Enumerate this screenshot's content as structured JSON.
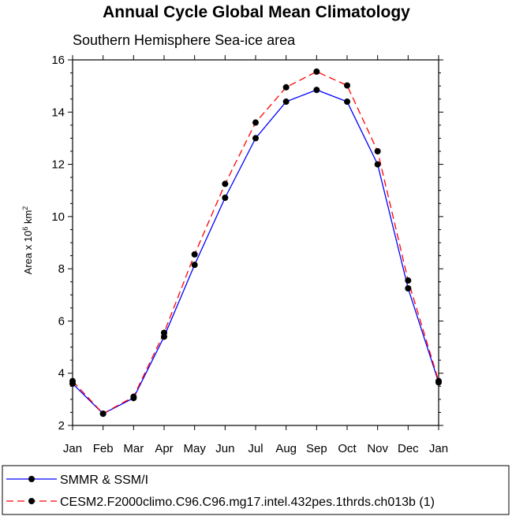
{
  "chart_data": {
    "type": "line",
    "title": "Annual Cycle Global Mean Climatology",
    "subtitle": "Southern Hemisphere Sea-ice area",
    "ylabel": {
      "prefix": "Area x 10",
      "exp1": "6",
      "mid": " km",
      "exp2": "2"
    },
    "xlabel": "",
    "categories": [
      "Jan",
      "Feb",
      "Mar",
      "Apr",
      "May",
      "Jun",
      "Jul",
      "Aug",
      "Sep",
      "Oct",
      "Nov",
      "Dec",
      "Jan"
    ],
    "ylim": [
      2,
      16
    ],
    "yticks": [
      2,
      4,
      6,
      8,
      10,
      12,
      14,
      16
    ],
    "grid": false,
    "legend_position": "bottom",
    "series": [
      {
        "name": "SMMR & SSM/I",
        "color": "#0000ff",
        "dash": "solid",
        "values": [
          3.6,
          2.45,
          3.05,
          5.4,
          8.15,
          10.72,
          13.0,
          14.4,
          14.85,
          14.4,
          12.0,
          7.25,
          3.65
        ]
      },
      {
        "name": "CESM2.F2000climo.C96.C96.mg17.intel.432pes.1thrds.ch013b (1)",
        "color": "#ff0000",
        "dash": "dashed",
        "values": [
          3.7,
          2.45,
          3.1,
          5.55,
          8.55,
          11.25,
          13.6,
          14.95,
          15.55,
          15.02,
          12.5,
          7.55,
          3.7
        ]
      }
    ]
  }
}
